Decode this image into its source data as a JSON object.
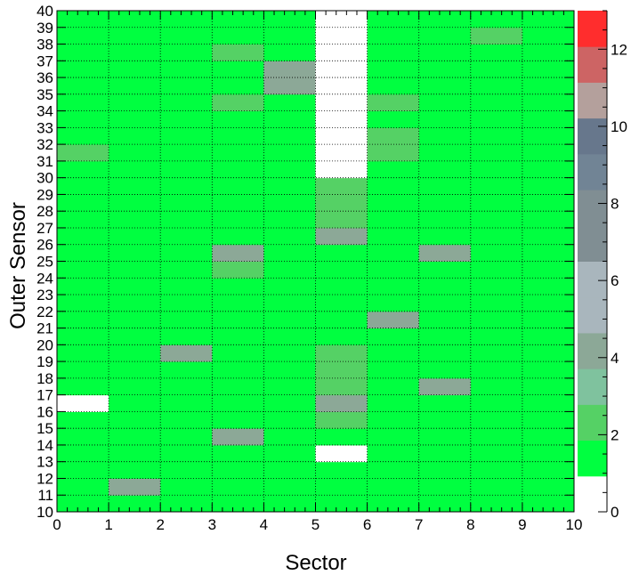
{
  "chart_data": {
    "type": "heatmap",
    "title": "",
    "xlabel": "Sector",
    "ylabel": "Outer Sensor",
    "xlim": [
      0,
      10
    ],
    "ylim": [
      10,
      40
    ],
    "x_ticks": [
      "0",
      "1",
      "2",
      "3",
      "4",
      "5",
      "6",
      "7",
      "8",
      "9",
      "10"
    ],
    "y_ticks": [
      "10",
      "11",
      "12",
      "13",
      "14",
      "15",
      "16",
      "17",
      "18",
      "19",
      "20",
      "21",
      "22",
      "23",
      "24",
      "25",
      "26",
      "27",
      "28",
      "29",
      "30",
      "31",
      "32",
      "33",
      "34",
      "35",
      "36",
      "37",
      "38",
      "39",
      "40"
    ],
    "grid": true,
    "default_value": 1,
    "cells": [
      {
        "x": 5,
        "y": 30,
        "v": 0
      },
      {
        "x": 5,
        "y": 31,
        "v": 0
      },
      {
        "x": 5,
        "y": 32,
        "v": 0
      },
      {
        "x": 5,
        "y": 33,
        "v": 0
      },
      {
        "x": 5,
        "y": 34,
        "v": 0
      },
      {
        "x": 5,
        "y": 35,
        "v": 0
      },
      {
        "x": 5,
        "y": 36,
        "v": 0
      },
      {
        "x": 5,
        "y": 37,
        "v": 0
      },
      {
        "x": 5,
        "y": 38,
        "v": 0
      },
      {
        "x": 5,
        "y": 39,
        "v": 0
      },
      {
        "x": 5,
        "y": 13,
        "v": 0
      },
      {
        "x": 0,
        "y": 16,
        "v": 0
      },
      {
        "x": 1,
        "y": 11,
        "v": 4
      },
      {
        "x": 2,
        "y": 19,
        "v": 4
      },
      {
        "x": 3,
        "y": 14,
        "v": 4
      },
      {
        "x": 3,
        "y": 24,
        "v": 2
      },
      {
        "x": 3,
        "y": 25,
        "v": 4
      },
      {
        "x": 3,
        "y": 34,
        "v": 2
      },
      {
        "x": 3,
        "y": 37,
        "v": 2
      },
      {
        "x": 4,
        "y": 35,
        "v": 4
      },
      {
        "x": 4,
        "y": 36,
        "v": 4
      },
      {
        "x": 5,
        "y": 15,
        "v": 2
      },
      {
        "x": 5,
        "y": 16,
        "v": 4
      },
      {
        "x": 5,
        "y": 17,
        "v": 2
      },
      {
        "x": 5,
        "y": 18,
        "v": 2
      },
      {
        "x": 5,
        "y": 19,
        "v": 2
      },
      {
        "x": 5,
        "y": 26,
        "v": 4
      },
      {
        "x": 5,
        "y": 27,
        "v": 2
      },
      {
        "x": 5,
        "y": 28,
        "v": 2
      },
      {
        "x": 5,
        "y": 29,
        "v": 2
      },
      {
        "x": 6,
        "y": 21,
        "v": 4
      },
      {
        "x": 6,
        "y": 31,
        "v": 2
      },
      {
        "x": 6,
        "y": 32,
        "v": 2
      },
      {
        "x": 6,
        "y": 34,
        "v": 2
      },
      {
        "x": 7,
        "y": 17,
        "v": 4
      },
      {
        "x": 7,
        "y": 25,
        "v": 4
      },
      {
        "x": 8,
        "y": 38,
        "v": 2
      },
      {
        "x": 0,
        "y": 31,
        "v": 2
      }
    ],
    "colorbar": {
      "min": 0,
      "max": 13,
      "ticks": [
        "0",
        "2",
        "4",
        "6",
        "8",
        "10",
        "12"
      ],
      "colors": [
        "#ffffff",
        "#00ff40",
        "#55d165",
        "#7fc29e",
        "#8ca897",
        "#a9b6bd",
        "#a9b6bd",
        "#808e93",
        "#808e93",
        "#718495",
        "#67778c",
        "#b4a09c",
        "#cd6464",
        "#ff2d2d"
      ]
    }
  }
}
